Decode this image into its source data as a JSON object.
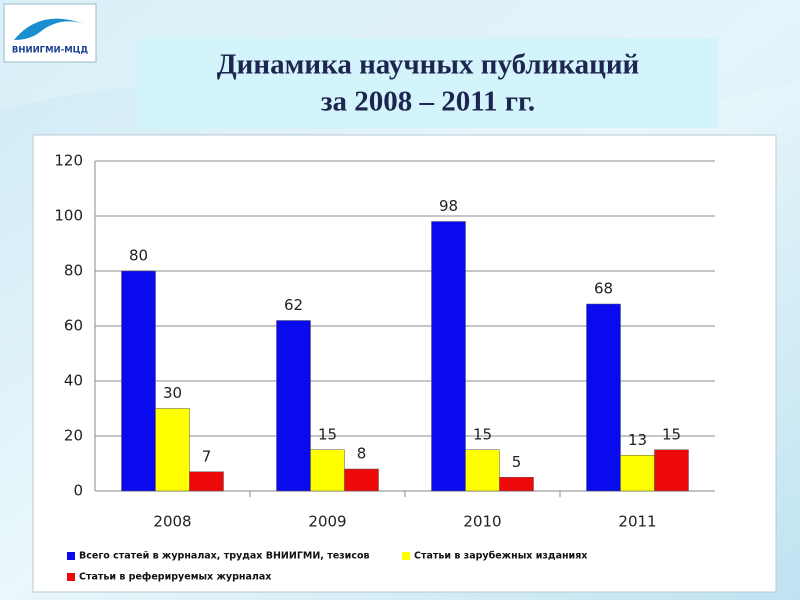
{
  "logo": "ВНИИГМИ-МЦД",
  "chart_data": {
    "type": "bar",
    "title": [
      "Динамика научных публикаций",
      "за 2008 – 2011 гг."
    ],
    "categories": [
      "2008",
      "2009",
      "2010",
      "2011"
    ],
    "series": [
      {
        "name": "Всего статей в журналах, трудах ВНИИГМИ, тезисов",
        "color": "#0a0aef",
        "values": [
          80,
          62,
          98,
          68
        ]
      },
      {
        "name": "Статьи в зарубежных изданиях",
        "color": "#ffff00",
        "values": [
          30,
          15,
          15,
          13
        ]
      },
      {
        "name": "Статьи в реферируемых журналах",
        "color": "#ee0a0a",
        "values": [
          7,
          8,
          5,
          15
        ]
      }
    ],
    "ylim": [
      0,
      120
    ],
    "yticks": [
      0,
      20,
      40,
      60,
      80,
      100,
      120
    ],
    "grid": true,
    "legend": "bottom"
  }
}
